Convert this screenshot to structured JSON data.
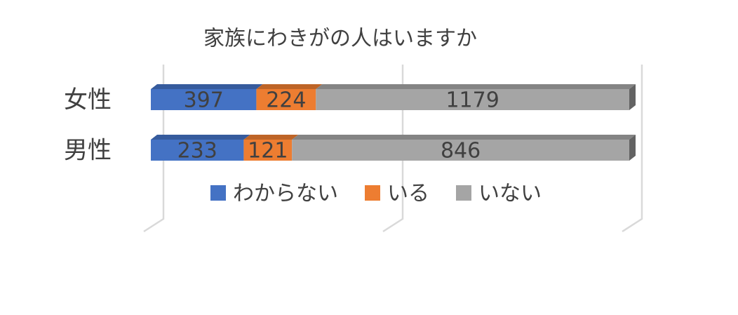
{
  "chart_data": {
    "type": "bar",
    "orientation": "horizontal",
    "stacking": "percent",
    "title": "家族にわきがの人はいますか",
    "categories": [
      "女性",
      "男性"
    ],
    "series": [
      {
        "name": "わからない",
        "color": "#4472c4",
        "values": [
          397,
          233
        ]
      },
      {
        "name": "いる",
        "color": "#ed7d31",
        "values": [
          224,
          121
        ]
      },
      {
        "name": "いない",
        "color": "#a5a5a5",
        "values": [
          1179,
          846
        ]
      }
    ],
    "xlim": [
      0,
      100
    ],
    "xticks": [
      0,
      50,
      100
    ],
    "grid": true,
    "legend": "bottom"
  }
}
